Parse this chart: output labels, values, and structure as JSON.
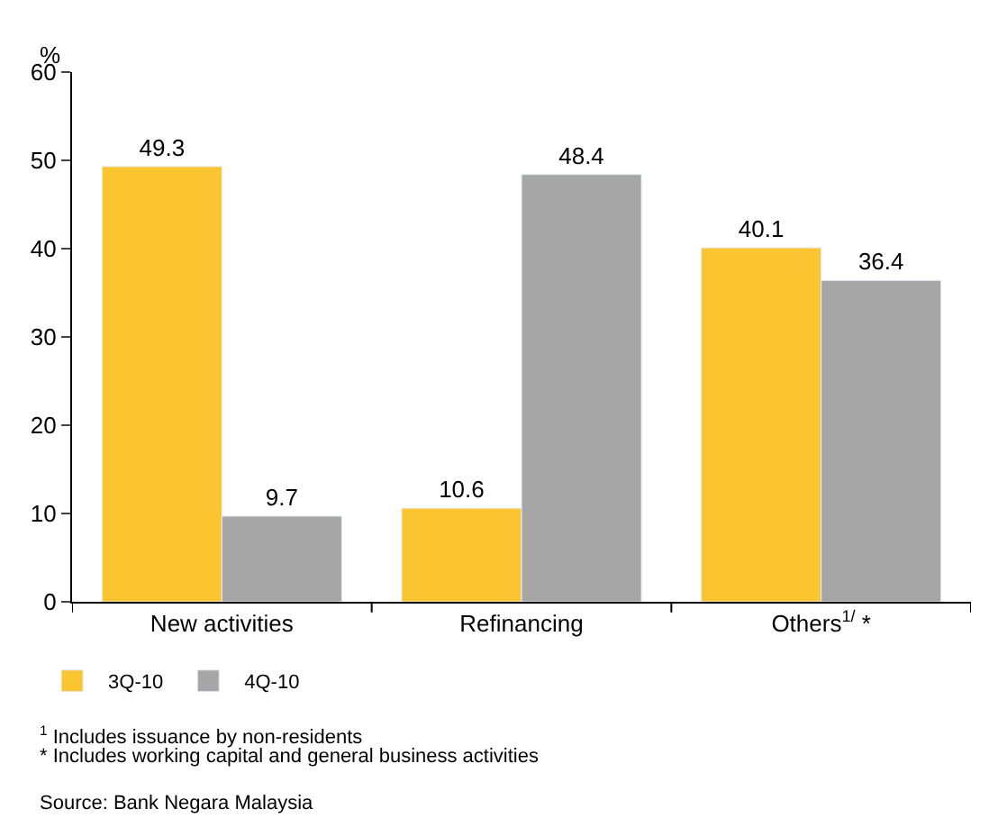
{
  "chart_data": {
    "type": "bar",
    "ylabel": "%",
    "categories": [
      "New activities",
      "Refinancing",
      "Others$^{1/}$ *"
    ],
    "series": [
      {
        "name": "3Q-10",
        "color": "#fbc531",
        "values": [
          49.3,
          10.6,
          40.1
        ]
      },
      {
        "name": "4Q-10",
        "color": "#a6a6a6",
        "values": [
          9.7,
          48.4,
          36.4
        ]
      }
    ],
    "ylim": [
      0,
      60
    ],
    "yticks": [
      0,
      10,
      20,
      30,
      40,
      50,
      60
    ],
    "legend": "bottom left",
    "data_labels": true,
    "annotations": [
      "$^{1}$ Includes issuance by non-residents",
      "* Includes working capital and general business activities",
      "Source: Bank Negara Malaysia"
    ]
  }
}
